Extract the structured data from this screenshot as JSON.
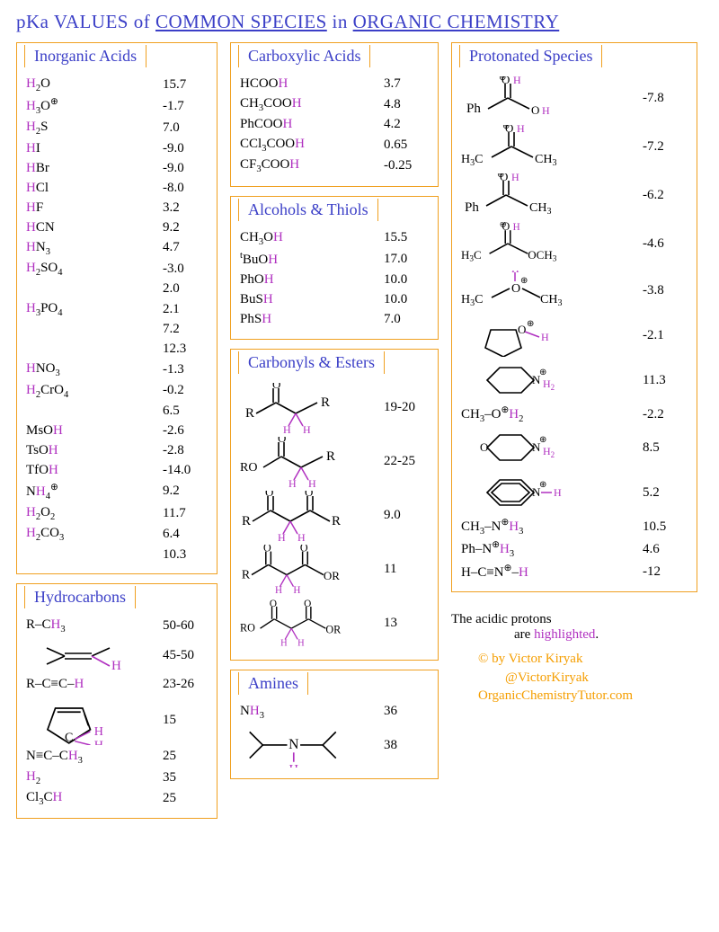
{
  "title_parts": [
    "pKa VALUES",
    " of ",
    "COMMON SPECIES",
    " in ",
    "ORGANIC CHEMISTRY"
  ],
  "colors": {
    "title": "#3b3fc7",
    "border": "#f0a020",
    "proton": "#b030c0",
    "text": "#000000",
    "credit": "#f59e00"
  },
  "boxes": {
    "inorganic": {
      "title": "Inorganic  Acids",
      "rows": [
        {
          "formula": [
            [
              "H",
              "hp"
            ],
            [
              "2",
              "sub"
            ],
            [
              "O",
              ""
            ]
          ],
          "pka": "15.7"
        },
        {
          "formula": [
            [
              "H",
              "hp"
            ],
            [
              "3",
              "sub"
            ],
            [
              "O",
              ""
            ],
            [
              "⊕",
              "sup"
            ]
          ],
          "pka": "-1.7"
        },
        {
          "formula": [
            [
              "H",
              "hp"
            ],
            [
              "2",
              "sub"
            ],
            [
              "S",
              ""
            ]
          ],
          "pka": "7.0"
        },
        {
          "formula": [
            [
              "H",
              "hp"
            ],
            [
              "I",
              ""
            ]
          ],
          "pka": "-9.0"
        },
        {
          "formula": [
            [
              "H",
              "hp"
            ],
            [
              "Br",
              ""
            ]
          ],
          "pka": "-9.0"
        },
        {
          "formula": [
            [
              "H",
              "hp"
            ],
            [
              "Cl",
              ""
            ]
          ],
          "pka": "-8.0"
        },
        {
          "formula": [
            [
              "H",
              "hp"
            ],
            [
              "F",
              ""
            ]
          ],
          "pka": "3.2"
        },
        {
          "formula": [
            [
              "H",
              "hp"
            ],
            [
              "CN",
              ""
            ]
          ],
          "pka": "9.2"
        },
        {
          "formula": [
            [
              "H",
              "hp"
            ],
            [
              "N",
              ""
            ],
            [
              "3",
              "sub"
            ]
          ],
          "pka": "4.7"
        },
        {
          "formula": [
            [
              "H",
              "hp"
            ],
            [
              "2",
              "sub"
            ],
            [
              "SO",
              ""
            ],
            [
              "4",
              "sub"
            ]
          ],
          "pka": "-3.0"
        },
        {
          "formula": [
            [
              "",
              ""
            ]
          ],
          "pka": "2.0"
        },
        {
          "formula": [
            [
              "H",
              "hp"
            ],
            [
              "3",
              "sub"
            ],
            [
              "PO",
              ""
            ],
            [
              "4",
              "sub"
            ]
          ],
          "pka": "2.1"
        },
        {
          "formula": [
            [
              "",
              ""
            ]
          ],
          "pka": "7.2"
        },
        {
          "formula": [
            [
              "",
              ""
            ]
          ],
          "pka": "12.3"
        },
        {
          "formula": [
            [
              "H",
              "hp"
            ],
            [
              "NO",
              ""
            ],
            [
              "3",
              "sub"
            ]
          ],
          "pka": "-1.3"
        },
        {
          "formula": [
            [
              "H",
              "hp"
            ],
            [
              "2",
              "sub"
            ],
            [
              "CrO",
              ""
            ],
            [
              "4",
              "sub"
            ]
          ],
          "pka": "-0.2"
        },
        {
          "formula": [
            [
              "",
              ""
            ]
          ],
          "pka": "6.5"
        },
        {
          "formula": [
            [
              "MsO",
              ""
            ],
            [
              "H",
              "hp"
            ]
          ],
          "pka": "-2.6"
        },
        {
          "formula": [
            [
              "TsO",
              ""
            ],
            [
              "H",
              "hp"
            ]
          ],
          "pka": "-2.8"
        },
        {
          "formula": [
            [
              "TfO",
              ""
            ],
            [
              "H",
              "hp"
            ]
          ],
          "pka": "-14.0"
        },
        {
          "formula": [
            [
              "N",
              ""
            ],
            [
              "H",
              "hp"
            ],
            [
              "4",
              "sub"
            ],
            [
              "⊕",
              "sup"
            ]
          ],
          "pka": "9.2"
        },
        {
          "formula": [
            [
              "H",
              "hp"
            ],
            [
              "2",
              "sub"
            ],
            [
              "O",
              ""
            ],
            [
              "2",
              "sub"
            ]
          ],
          "pka": "11.7"
        },
        {
          "formula": [
            [
              "H",
              "hp"
            ],
            [
              "2",
              "sub"
            ],
            [
              "CO",
              ""
            ],
            [
              "3",
              "sub"
            ]
          ],
          "pka": "6.4"
        },
        {
          "formula": [
            [
              "",
              ""
            ]
          ],
          "pka": "10.3"
        }
      ]
    },
    "hydrocarbons": {
      "title": "Hydrocarbons",
      "rows": [
        {
          "kind": "text",
          "formula": [
            [
              "R–C",
              ""
            ],
            [
              "H",
              "hp"
            ],
            [
              "3",
              "sub"
            ]
          ],
          "pka": "50-60"
        },
        {
          "kind": "svg",
          "svg": "alkene",
          "pka": "45-50"
        },
        {
          "kind": "text",
          "formula": [
            [
              "R–C≡C–",
              ""
            ],
            [
              "H",
              "hp"
            ]
          ],
          "pka": "23-26"
        },
        {
          "kind": "svg",
          "svg": "cyclopentadiene",
          "pka": "15"
        },
        {
          "kind": "text",
          "formula": [
            [
              "N≡C–C",
              ""
            ],
            [
              "H",
              "hp"
            ],
            [
              "3",
              "sub"
            ]
          ],
          "pka": "25"
        },
        {
          "kind": "text",
          "formula": [
            [
              "H",
              "hp"
            ],
            [
              "2",
              "sub"
            ]
          ],
          "pka": "35"
        },
        {
          "kind": "text",
          "formula": [
            [
              "Cl",
              ""
            ],
            [
              "3",
              "sub"
            ],
            [
              "C",
              ""
            ],
            [
              "H",
              "hp"
            ]
          ],
          "pka": "25"
        }
      ]
    },
    "carboxylic": {
      "title": "Carboxylic Acids",
      "rows": [
        {
          "formula": [
            [
              "HCOO",
              ""
            ],
            [
              "H",
              "hp"
            ]
          ],
          "pka": "3.7"
        },
        {
          "formula": [
            [
              "CH",
              ""
            ],
            [
              "3",
              "sub"
            ],
            [
              "COO",
              ""
            ],
            [
              "H",
              "hp"
            ]
          ],
          "pka": "4.8"
        },
        {
          "formula": [
            [
              "PhCOO",
              ""
            ],
            [
              "H",
              "hp"
            ]
          ],
          "pka": "4.2"
        },
        {
          "formula": [
            [
              "CCl",
              ""
            ],
            [
              "3",
              "sub"
            ],
            [
              "COO",
              ""
            ],
            [
              "H",
              "hp"
            ]
          ],
          "pka": "0.65"
        },
        {
          "formula": [
            [
              "CF",
              ""
            ],
            [
              "3",
              "sub"
            ],
            [
              "COO",
              ""
            ],
            [
              "H",
              "hp"
            ]
          ],
          "pka": "-0.25"
        }
      ]
    },
    "alcohols": {
      "title": "Alcohols & Thiols",
      "rows": [
        {
          "formula": [
            [
              "CH",
              ""
            ],
            [
              "3",
              "sub"
            ],
            [
              "O",
              ""
            ],
            [
              "H",
              "hp"
            ]
          ],
          "pka": "15.5"
        },
        {
          "formula": [
            [
              "t",
              "sup"
            ],
            [
              "BuO",
              ""
            ],
            [
              "H",
              "hp"
            ]
          ],
          "pka": "17.0"
        },
        {
          "formula": [
            [
              "PhO",
              ""
            ],
            [
              "H",
              "hp"
            ]
          ],
          "pka": "10.0"
        },
        {
          "formula": [
            [
              "BuS",
              ""
            ],
            [
              "H",
              "hp"
            ]
          ],
          "pka": "10.0"
        },
        {
          "formula": [
            [
              "PhS",
              ""
            ],
            [
              "H",
              "hp"
            ]
          ],
          "pka": "7.0"
        }
      ]
    },
    "carbonyls": {
      "title": "Carbonyls & Esters",
      "rows": [
        {
          "svg": "ketone-alpha",
          "pka": "19-20"
        },
        {
          "svg": "ester-alpha",
          "pka": "22-25"
        },
        {
          "svg": "beta-diketone",
          "pka": "9.0"
        },
        {
          "svg": "beta-ketoester",
          "pka": "11"
        },
        {
          "svg": "malonate",
          "pka": "13"
        }
      ]
    },
    "amines": {
      "title": "Amines",
      "rows": [
        {
          "kind": "text",
          "formula": [
            [
              "N",
              ""
            ],
            [
              "H",
              "hp"
            ],
            [
              "3",
              "sub"
            ]
          ],
          "pka": "36"
        },
        {
          "kind": "svg",
          "svg": "sec-amine",
          "pka": "38"
        }
      ]
    },
    "protonated": {
      "title": "Protonated Species",
      "rows": [
        {
          "svg": "prot-benzoic",
          "pka": "-7.8"
        },
        {
          "svg": "prot-acetone",
          "pka": "-7.2"
        },
        {
          "svg": "prot-acetophenone",
          "pka": "-6.2"
        },
        {
          "svg": "prot-methylacetate",
          "pka": "-4.6"
        },
        {
          "svg": "prot-dme",
          "pka": "-3.8"
        },
        {
          "svg": "prot-thf",
          "pka": "-2.1"
        },
        {
          "svg": "prot-piperidine",
          "pka": "11.3"
        },
        {
          "kind": "text",
          "formula": [
            [
              "CH",
              ""
            ],
            [
              "3",
              "sub"
            ],
            [
              "–",
              ""
            ],
            [
              "O",
              "⊕top"
            ],
            [
              "H",
              "hp"
            ],
            [
              "2",
              "sub"
            ]
          ],
          "pka": "-2.2"
        },
        {
          "svg": "prot-morpholine",
          "pka": "8.5"
        },
        {
          "svg": "prot-pyridine",
          "pka": "5.2"
        },
        {
          "kind": "text",
          "formula": [
            [
              "CH",
              ""
            ],
            [
              "3",
              "sub"
            ],
            [
              "–",
              ""
            ],
            [
              "N",
              "⊕top"
            ],
            [
              "H",
              "hp"
            ],
            [
              "3",
              "sub"
            ]
          ],
          "pka": "10.5"
        },
        {
          "kind": "text",
          "formula": [
            [
              "Ph–",
              ""
            ],
            [
              "N",
              "⊕top"
            ],
            [
              "H",
              "hp"
            ],
            [
              "3",
              "sub"
            ]
          ],
          "pka": "4.6"
        },
        {
          "kind": "text",
          "formula": [
            [
              "H–C≡",
              ""
            ],
            [
              "N",
              "⊕top"
            ],
            [
              "–",
              ""
            ],
            [
              "H",
              "hp"
            ]
          ],
          "pka": "-12"
        }
      ]
    }
  },
  "footer": {
    "note1": "The acidic protons",
    "note2_pre": "are ",
    "note2_hl": "highlighted",
    "note2_post": ".",
    "credit_l1": "© by Victor Kiryak",
    "credit_l2": "@VictorKiryak",
    "credit_l3": "OrganicChemistryTutor.com"
  }
}
